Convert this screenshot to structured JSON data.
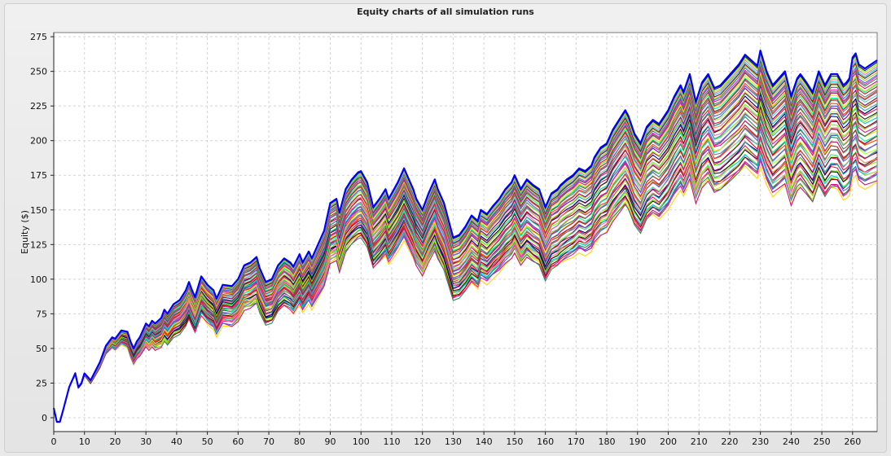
{
  "chart_data": {
    "type": "line",
    "title": "Equity charts of all simulation runs",
    "xlabel": "",
    "ylabel": "Equity ($)",
    "xlim": [
      0,
      268
    ],
    "ylim": [
      -10,
      278
    ],
    "x_ticks": [
      0,
      10,
      20,
      30,
      40,
      50,
      60,
      70,
      80,
      90,
      100,
      110,
      120,
      130,
      140,
      150,
      160,
      170,
      180,
      190,
      200,
      210,
      220,
      230,
      240,
      250,
      260
    ],
    "y_ticks": [
      0,
      25,
      50,
      75,
      100,
      125,
      150,
      175,
      200,
      225,
      250,
      275
    ],
    "grid": true,
    "legend": "none",
    "run_count": 60,
    "series": [
      {
        "color": "#0000ff",
        "x": [
          0,
          1,
          2,
          3,
          5,
          7,
          8,
          9,
          10,
          12,
          15,
          17,
          19,
          20,
          21,
          22,
          24,
          25,
          26,
          27,
          28,
          30,
          31,
          32,
          33,
          35,
          36,
          37,
          39,
          41,
          43,
          44,
          45,
          46,
          48,
          50,
          52,
          53,
          55,
          58,
          60,
          62,
          64,
          66,
          67,
          69,
          71,
          73,
          75,
          77,
          78,
          80,
          81,
          83,
          84,
          86,
          88,
          90,
          92,
          93,
          95,
          97,
          99,
          100,
          102,
          104,
          106,
          108,
          109,
          110,
          112,
          114,
          116,
          117,
          118,
          120,
          122,
          124,
          125,
          127,
          130,
          132,
          134,
          136,
          138,
          139,
          141,
          143,
          145,
          147,
          149,
          150,
          152,
          154,
          156,
          158,
          160,
          162,
          164,
          165,
          167,
          169,
          171,
          173,
          175,
          176,
          178,
          180,
          182,
          184,
          186,
          187,
          189,
          191,
          193,
          195,
          197,
          200,
          202,
          204,
          205,
          207,
          209,
          211,
          213,
          215,
          217,
          219,
          221,
          223,
          225,
          227,
          229,
          230,
          232,
          234,
          236,
          238,
          240,
          242,
          243,
          245,
          247,
          249,
          251,
          253,
          255,
          257,
          258,
          259,
          260,
          261,
          262,
          264,
          266,
          268
        ],
        "values": [
          7,
          -3,
          -3,
          5,
          22,
          32,
          22,
          25,
          32,
          27,
          40,
          52,
          58,
          57,
          60,
          63,
          62,
          55,
          50,
          55,
          58,
          68,
          66,
          70,
          68,
          72,
          78,
          75,
          82,
          85,
          92,
          98,
          92,
          87,
          102,
          96,
          92,
          86,
          96,
          95,
          100,
          110,
          112,
          116,
          108,
          98,
          100,
          110,
          115,
          112,
          109,
          118,
          112,
          120,
          115,
          125,
          135,
          155,
          158,
          148,
          165,
          172,
          177,
          178,
          170,
          152,
          158,
          165,
          158,
          162,
          170,
          180,
          170,
          165,
          158,
          150,
          162,
          172,
          165,
          155,
          130,
          132,
          138,
          146,
          142,
          150,
          147,
          153,
          158,
          165,
          170,
          175,
          165,
          172,
          168,
          165,
          152,
          162,
          165,
          168,
          172,
          175,
          180,
          178,
          182,
          188,
          195,
          198,
          208,
          215,
          222,
          218,
          205,
          198,
          210,
          215,
          212,
          222,
          232,
          240,
          235,
          248,
          228,
          242,
          248,
          238,
          240,
          245,
          250,
          255,
          262,
          258,
          254,
          265,
          250,
          240,
          245,
          250,
          232,
          245,
          248,
          242,
          235,
          250,
          240,
          248,
          248,
          240,
          242,
          245,
          260,
          263,
          255,
          252,
          255,
          258
        ]
      }
    ]
  }
}
